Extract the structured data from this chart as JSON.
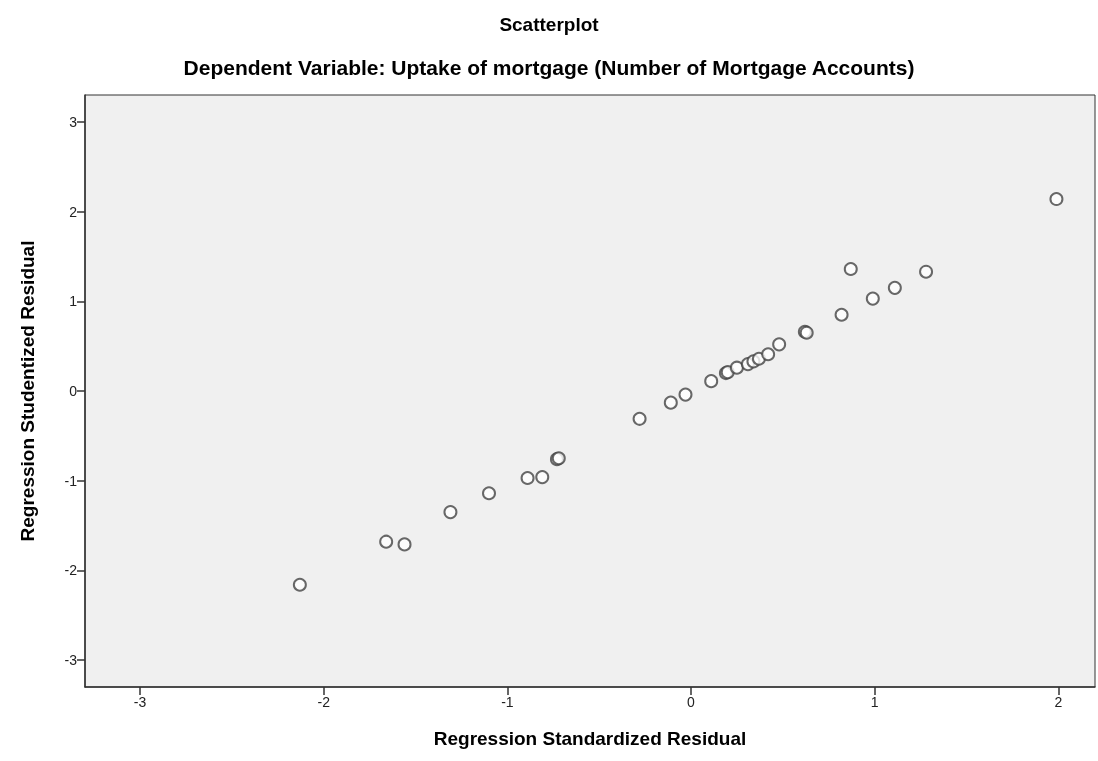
{
  "chart_data": {
    "type": "scatter",
    "title": "Scatterplot",
    "subtitle": "Dependent Variable: Uptake of mortgage (Number of Mortgage Accounts)",
    "xlabel": "Regression Standardized Residual",
    "ylabel": "Regression Studentized Residual",
    "x": [
      -2.13,
      -1.66,
      -1.56,
      -1.31,
      -1.1,
      -0.89,
      -0.81,
      -0.73,
      -0.72,
      -0.28,
      -0.11,
      -0.03,
      0.11,
      0.19,
      0.2,
      0.25,
      0.31,
      0.34,
      0.37,
      0.42,
      0.48,
      0.62,
      0.63,
      0.82,
      0.87,
      0.99,
      1.11,
      1.28,
      1.99
    ],
    "values": [
      -2.16,
      -1.68,
      -1.71,
      -1.35,
      -1.14,
      -0.97,
      -0.96,
      -0.76,
      -0.75,
      -0.31,
      -0.13,
      -0.04,
      0.11,
      0.2,
      0.21,
      0.26,
      0.3,
      0.33,
      0.36,
      0.41,
      0.52,
      0.66,
      0.65,
      0.85,
      1.36,
      1.03,
      1.15,
      1.33,
      2.14
    ],
    "color": "#444444",
    "marker": "circle",
    "grid": false,
    "xlim": [
      -3.3,
      2.2
    ],
    "xticks": [
      -3,
      -2,
      -1,
      0,
      1,
      2
    ],
    "ylim": [
      -3.3,
      3.3
    ],
    "yticks": [
      -3,
      -2,
      -1,
      0,
      1,
      2,
      3
    ]
  }
}
